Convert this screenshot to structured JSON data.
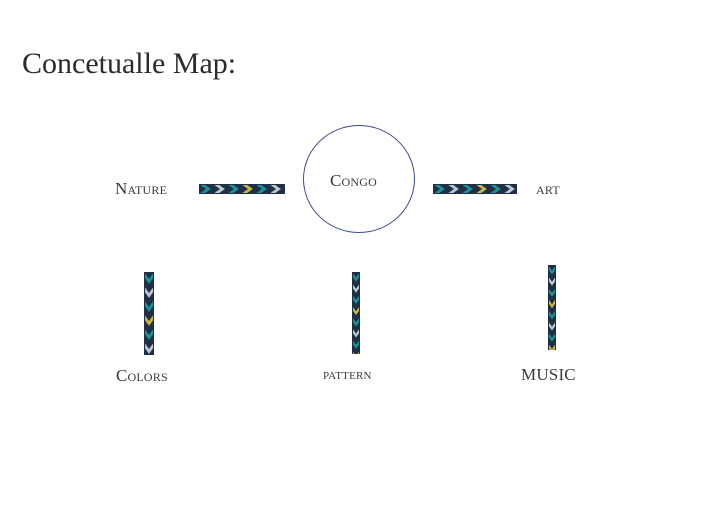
{
  "page": {
    "title": "Concetualle Map:"
  },
  "diagram": {
    "center": {
      "label": "Congo"
    },
    "nodes": [
      {
        "id": "nature",
        "label": "Nature"
      },
      {
        "id": "art",
        "label": "ART"
      },
      {
        "id": "colors",
        "label": "Colors"
      },
      {
        "id": "pattern",
        "label": "PATTERN"
      },
      {
        "id": "music",
        "label": "MUSIC"
      }
    ],
    "connector_style": "kente-pattern",
    "colors": {
      "circle_stroke": "#3b4a8f",
      "pattern_dark": "#1f2f44",
      "pattern_teal": "#1c9a9e",
      "pattern_light": "#c9d6dc",
      "pattern_accent": "#d7c24a"
    }
  }
}
